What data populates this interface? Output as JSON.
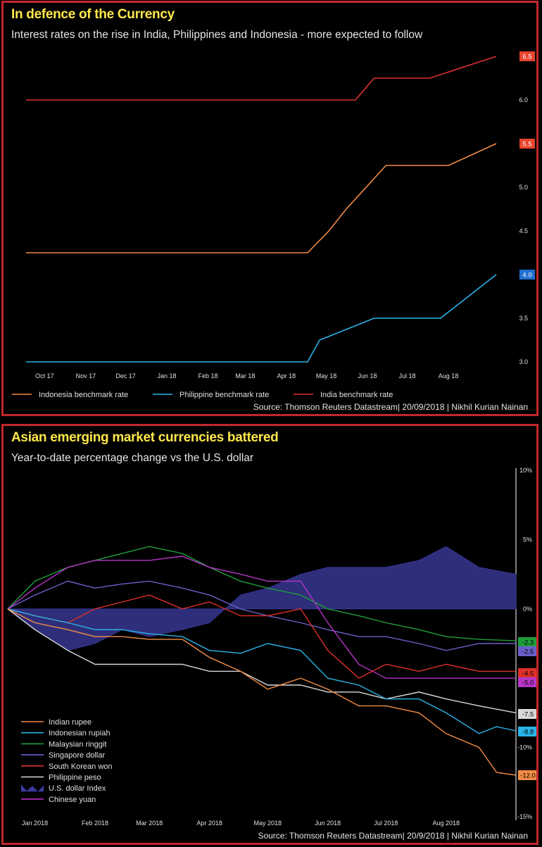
{
  "chart_data": [
    {
      "type": "line",
      "title": "In defence of the Currency",
      "subtitle": "Interest rates on the rise in India, Philippines and Indonesia - more expected to follow",
      "source": "Source: Thomson Reuters Datastream| 20/09/2018 | Nikhil Kurian Nainan",
      "x_ticks": [
        "Oct 17",
        "Nov 17",
        "Dec 17",
        "Jan 18",
        "Feb 18",
        "Mar 18",
        "Apr 18",
        "May 18",
        "Jun 18",
        "Jul 18",
        "Aug 18"
      ],
      "y_ticks": [
        "3.0",
        "3.5",
        "4.0",
        "4.5",
        "5.0",
        "5.5",
        "6.0",
        "6.5"
      ],
      "ylim": [
        3.0,
        6.5
      ],
      "grid": false,
      "legend_position": "bottom",
      "series": [
        {
          "name": "Indonesia benchmark rate",
          "color": "#f28c45",
          "end_label": "5.5",
          "end_badge_color": "#e8442e",
          "points": [
            [
              "2017-10-01",
              4.25
            ],
            [
              "2018-05-01",
              4.25
            ],
            [
              "2018-05-17",
              4.5
            ],
            [
              "2018-05-30",
              4.75
            ],
            [
              "2018-06-29",
              5.25
            ],
            [
              "2018-08-15",
              5.25
            ],
            [
              "2018-09-20",
              5.5
            ]
          ]
        },
        {
          "name": "Philippine benchmark rate",
          "color": "#2ab3e8",
          "end_label": "4.0",
          "end_badge_color": "#1f6fd1",
          "points": [
            [
              "2017-10-01",
              3.0
            ],
            [
              "2018-05-01",
              3.0
            ],
            [
              "2018-05-10",
              3.25
            ],
            [
              "2018-06-20",
              3.5
            ],
            [
              "2018-08-09",
              3.5
            ],
            [
              "2018-09-20",
              4.0
            ]
          ]
        },
        {
          "name": "India benchmark rate",
          "color": "#e0302b",
          "end_label": "6.5",
          "end_badge_color": "#e8442e",
          "points": [
            [
              "2017-10-01",
              6.0
            ],
            [
              "2018-06-06",
              6.0
            ],
            [
              "2018-06-20",
              6.25
            ],
            [
              "2018-08-01",
              6.25
            ],
            [
              "2018-09-20",
              6.5
            ]
          ]
        }
      ]
    },
    {
      "type": "line",
      "title": "Asian emerging market currencies battered",
      "subtitle": "Year-to-date percentage change vs the U.S. dollar",
      "source": "Source: Thomson Reuters Datastream| 20/9/2018 | Nikhil Kurian Nainan",
      "x_ticks": [
        "Jan 2018",
        "Feb 2018",
        "Mar 2018",
        "Apr 2018",
        "May 2018",
        "Jun 2018",
        "Jul 2018",
        "Aug 2018"
      ],
      "y_ticks": [
        "10%",
        "5%",
        "0%",
        "-5%",
        "-10%",
        "-15%"
      ],
      "ylim": [
        -15,
        10
      ],
      "grid": false,
      "legend_position": "bottom-left",
      "series": [
        {
          "name": "Indian rupee",
          "color": "#f28c45",
          "end_label": "-12.0",
          "badge_color": "#f28c45",
          "points": [
            [
              "2018-01-01",
              0
            ],
            [
              "2018-01-15",
              -1
            ],
            [
              "2018-02-01",
              -1.5
            ],
            [
              "2018-02-15",
              -2
            ],
            [
              "2018-03-01",
              -2
            ],
            [
              "2018-03-15",
              -2.2
            ],
            [
              "2018-04-01",
              -2.2
            ],
            [
              "2018-04-15",
              -3.5
            ],
            [
              "2018-05-01",
              -4.5
            ],
            [
              "2018-05-15",
              -5.8
            ],
            [
              "2018-06-01",
              -5
            ],
            [
              "2018-06-15",
              -5.8
            ],
            [
              "2018-07-01",
              -7
            ],
            [
              "2018-07-15",
              -7
            ],
            [
              "2018-08-01",
              -7.5
            ],
            [
              "2018-08-15",
              -9
            ],
            [
              "2018-09-01",
              -10
            ],
            [
              "2018-09-10",
              -11.8
            ],
            [
              "2018-09-20",
              -12
            ]
          ]
        },
        {
          "name": "Indonesian rupiah",
          "color": "#2ab3e8",
          "end_label": "-8.8",
          "badge_color": "#2ab3e8",
          "points": [
            [
              "2018-01-01",
              0
            ],
            [
              "2018-01-15",
              -0.5
            ],
            [
              "2018-02-01",
              -1
            ],
            [
              "2018-02-15",
              -1.5
            ],
            [
              "2018-03-01",
              -1.5
            ],
            [
              "2018-03-15",
              -1.8
            ],
            [
              "2018-04-01",
              -2
            ],
            [
              "2018-04-15",
              -3
            ],
            [
              "2018-05-01",
              -3.2
            ],
            [
              "2018-05-15",
              -2.5
            ],
            [
              "2018-06-01",
              -3
            ],
            [
              "2018-06-15",
              -5
            ],
            [
              "2018-07-01",
              -5.5
            ],
            [
              "2018-07-15",
              -6.5
            ],
            [
              "2018-08-01",
              -6.5
            ],
            [
              "2018-08-15",
              -7.5
            ],
            [
              "2018-09-01",
              -9
            ],
            [
              "2018-09-10",
              -8.5
            ],
            [
              "2018-09-20",
              -8.8
            ]
          ]
        },
        {
          "name": "Malaysian ringgit",
          "color": "#1e9e3c",
          "end_label": "-2.3",
          "badge_color": "#1e9e3c",
          "points": [
            [
              "2018-01-01",
              0
            ],
            [
              "2018-01-15",
              2
            ],
            [
              "2018-02-01",
              3
            ],
            [
              "2018-02-15",
              3.5
            ],
            [
              "2018-03-01",
              4
            ],
            [
              "2018-03-15",
              4.5
            ],
            [
              "2018-04-01",
              4
            ],
            [
              "2018-04-15",
              3
            ],
            [
              "2018-05-01",
              2
            ],
            [
              "2018-05-15",
              1.5
            ],
            [
              "2018-06-01",
              1
            ],
            [
              "2018-06-15",
              0
            ],
            [
              "2018-07-01",
              -0.5
            ],
            [
              "2018-07-15",
              -1
            ],
            [
              "2018-08-01",
              -1.5
            ],
            [
              "2018-08-15",
              -2
            ],
            [
              "2018-09-01",
              -2.2
            ],
            [
              "2018-09-20",
              -2.3
            ]
          ]
        },
        {
          "name": "Singapore dollar",
          "color": "#6a5fc9",
          "end_label": "-2.5",
          "badge_color": "#6a5fc9",
          "points": [
            [
              "2018-01-01",
              0
            ],
            [
              "2018-01-15",
              1
            ],
            [
              "2018-02-01",
              2
            ],
            [
              "2018-02-15",
              1.5
            ],
            [
              "2018-03-01",
              1.8
            ],
            [
              "2018-03-15",
              2
            ],
            [
              "2018-04-01",
              1.5
            ],
            [
              "2018-04-15",
              1
            ],
            [
              "2018-05-01",
              0
            ],
            [
              "2018-05-15",
              -0.5
            ],
            [
              "2018-06-01",
              -1
            ],
            [
              "2018-06-15",
              -1.5
            ],
            [
              "2018-07-01",
              -2
            ],
            [
              "2018-07-15",
              -2
            ],
            [
              "2018-08-01",
              -2.5
            ],
            [
              "2018-08-15",
              -3
            ],
            [
              "2018-09-01",
              -2.5
            ],
            [
              "2018-09-20",
              -2.5
            ]
          ]
        },
        {
          "name": "South Korean won",
          "color": "#e0302b",
          "end_label": "-4.5",
          "badge_color": "#e0302b",
          "points": [
            [
              "2018-01-01",
              0
            ],
            [
              "2018-01-15",
              -0.5
            ],
            [
              "2018-02-01",
              -1
            ],
            [
              "2018-02-15",
              0
            ],
            [
              "2018-03-01",
              0.5
            ],
            [
              "2018-03-15",
              1
            ],
            [
              "2018-04-01",
              0
            ],
            [
              "2018-04-15",
              0.5
            ],
            [
              "2018-05-01",
              -0.5
            ],
            [
              "2018-05-15",
              -0.5
            ],
            [
              "2018-06-01",
              0
            ],
            [
              "2018-06-15",
              -3
            ],
            [
              "2018-07-01",
              -5
            ],
            [
              "2018-07-15",
              -4
            ],
            [
              "2018-08-01",
              -4.5
            ],
            [
              "2018-08-15",
              -4
            ],
            [
              "2018-09-01",
              -4.5
            ],
            [
              "2018-09-20",
              -4.5
            ]
          ]
        },
        {
          "name": "Philippine peso",
          "color": "#d9d9d9",
          "end_label": "-7.5",
          "badge_color": "#d9d9d9",
          "points": [
            [
              "2018-01-01",
              0
            ],
            [
              "2018-01-15",
              -1.5
            ],
            [
              "2018-02-01",
              -3
            ],
            [
              "2018-02-15",
              -4
            ],
            [
              "2018-03-01",
              -4
            ],
            [
              "2018-03-15",
              -4
            ],
            [
              "2018-04-01",
              -4
            ],
            [
              "2018-04-15",
              -4.5
            ],
            [
              "2018-05-01",
              -4.5
            ],
            [
              "2018-05-15",
              -5.5
            ],
            [
              "2018-06-01",
              -5.5
            ],
            [
              "2018-06-15",
              -6
            ],
            [
              "2018-07-01",
              -6
            ],
            [
              "2018-07-15",
              -6.5
            ],
            [
              "2018-08-01",
              -6
            ],
            [
              "2018-08-15",
              -6.5
            ],
            [
              "2018-09-01",
              -7
            ],
            [
              "2018-09-20",
              -7.5
            ]
          ]
        },
        {
          "name": "U.S. dollar Index",
          "color": "#2e2e7a",
          "end_label": "",
          "badge_color": "",
          "points": [
            [
              "2018-01-01",
              0
            ],
            [
              "2018-01-15",
              -1.5
            ],
            [
              "2018-02-01",
              -3
            ],
            [
              "2018-02-15",
              -2.5
            ],
            [
              "2018-03-01",
              -1.5
            ],
            [
              "2018-03-15",
              -2
            ],
            [
              "2018-04-01",
              -1.5
            ],
            [
              "2018-04-15",
              -1
            ],
            [
              "2018-05-01",
              1
            ],
            [
              "2018-05-15",
              1.5
            ],
            [
              "2018-06-01",
              2.5
            ],
            [
              "2018-06-15",
              3
            ],
            [
              "2018-07-01",
              3
            ],
            [
              "2018-07-15",
              3
            ],
            [
              "2018-08-01",
              3.5
            ],
            [
              "2018-08-15",
              4.5
            ],
            [
              "2018-09-01",
              3
            ],
            [
              "2018-09-20",
              2.5
            ]
          ]
        },
        {
          "name": "Chinese yuan",
          "color": "#b535c7",
          "end_label": "-5.0",
          "badge_color": "#b535c7",
          "points": [
            [
              "2018-01-01",
              0
            ],
            [
              "2018-01-15",
              1.5
            ],
            [
              "2018-02-01",
              3
            ],
            [
              "2018-02-15",
              3.5
            ],
            [
              "2018-03-01",
              3.5
            ],
            [
              "2018-03-15",
              3.5
            ],
            [
              "2018-04-01",
              3.8
            ],
            [
              "2018-04-15",
              3
            ],
            [
              "2018-05-01",
              2.5
            ],
            [
              "2018-05-15",
              2
            ],
            [
              "2018-06-01",
              2
            ],
            [
              "2018-06-15",
              -1
            ],
            [
              "2018-07-01",
              -4
            ],
            [
              "2018-07-15",
              -5
            ],
            [
              "2018-08-01",
              -5
            ],
            [
              "2018-08-15",
              -5
            ],
            [
              "2018-09-01",
              -5
            ],
            [
              "2018-09-20",
              -5
            ]
          ]
        }
      ]
    }
  ]
}
